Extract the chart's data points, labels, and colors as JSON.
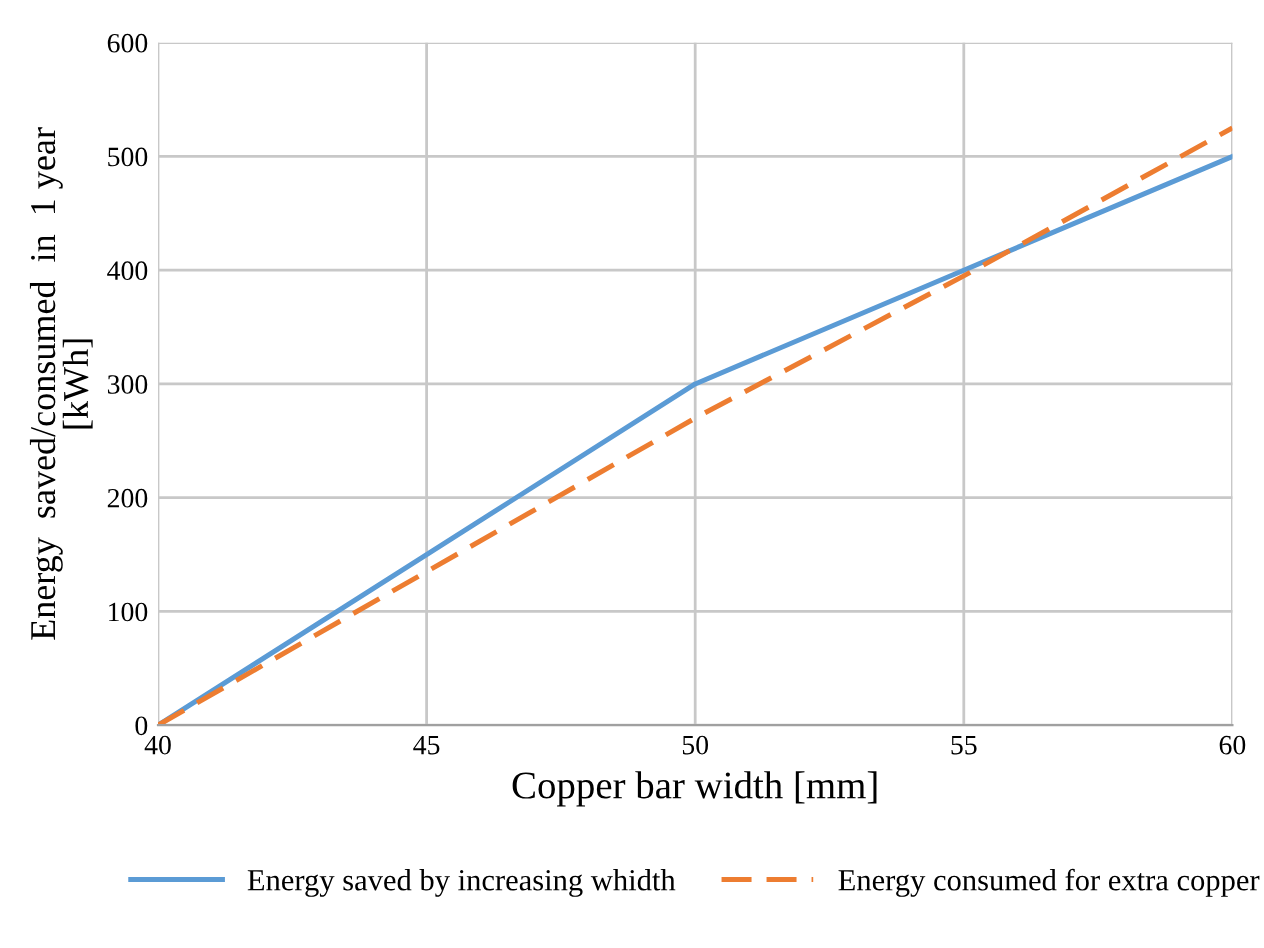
{
  "chart_data": {
    "type": "line",
    "xlabel": "Copper bar width [mm]",
    "ylabel": "Energy  saved/consumed  in  1 year\n[kWh]",
    "series": [
      {
        "name": "Energy saved by increasing whidth",
        "color": "#5b9bd5",
        "line_style": "solid",
        "x": [
          40,
          45,
          50,
          55,
          60
        ],
        "values": [
          0,
          150,
          300,
          400,
          500
        ]
      },
      {
        "name": "Energy consumed for extra copper",
        "color": "#ed7d31",
        "line_style": "dashed",
        "x": [
          40,
          45,
          50,
          55,
          60
        ],
        "values": [
          0,
          135,
          270,
          395,
          525
        ]
      }
    ],
    "xlim": [
      40,
      60
    ],
    "xticks": [
      40,
      45,
      50,
      55,
      60
    ],
    "ylim": [
      0,
      600
    ],
    "yticks": [
      0,
      100,
      200,
      300,
      400,
      500,
      600
    ],
    "grid": true,
    "legend": "bottom",
    "marker": "none"
  }
}
